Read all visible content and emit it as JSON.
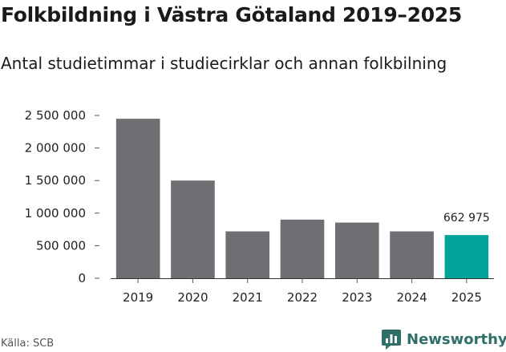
{
  "title": "Folkbildning i Västra Götaland 2019–2025",
  "subtitle": "Antal studietimmar i studiecirklar och annan folkbilning",
  "source": "Källa: SCB",
  "brand": "Newsworthy",
  "colors": {
    "bar": "#6e6e73",
    "highlight": "#00a49a",
    "brand": "#2f6f68"
  },
  "chart_data": {
    "type": "bar",
    "title": "Folkbildning i Västra Götaland 2019–2025",
    "subtitle": "Antal studietimmar i studiecirklar och annan folkbilning",
    "xlabel": "",
    "ylabel": "",
    "categories": [
      "2019",
      "2020",
      "2021",
      "2022",
      "2023",
      "2024",
      "2025"
    ],
    "values": [
      2450000,
      1500000,
      720000,
      900000,
      855000,
      720000,
      662975
    ],
    "highlight_index": 6,
    "data_labels": [
      {
        "index": 6,
        "text": "662 975"
      }
    ],
    "yticks": [
      0,
      500000,
      1000000,
      1500000,
      2000000,
      2500000
    ],
    "ytick_labels": [
      "0",
      "500 000",
      "1 000 000",
      "1 500 000",
      "2 000 000",
      "2 500 000"
    ],
    "ylim": [
      0,
      2500000
    ],
    "grid": false,
    "legend": "none"
  }
}
